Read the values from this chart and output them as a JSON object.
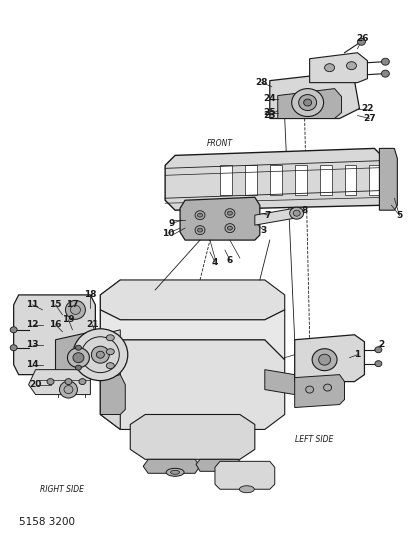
{
  "bg_color": "#ffffff",
  "line_color": "#1a1a1a",
  "part_number": "5158 3200",
  "section_labels": {
    "RIGHT SIDE": [
      0.09,
      0.585
    ],
    "LEFT SIDE": [
      0.72,
      0.435
    ],
    "FRONT": [
      0.44,
      0.195
    ]
  },
  "part_label_fontsize": 6.5,
  "section_label_fontsize": 5.5,
  "pn_fontsize": 7.5
}
